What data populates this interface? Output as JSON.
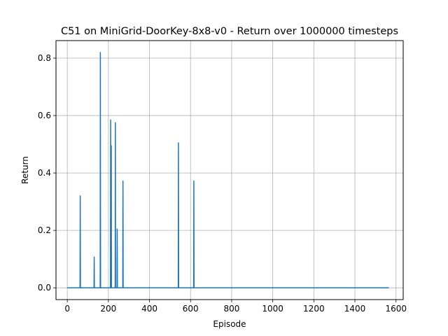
{
  "chart_data": {
    "type": "line",
    "title": "C51 on MiniGrid-DoorKey-8x8-v0 - Return over 1000000 timesteps",
    "xlabel": "Episode",
    "ylabel": "Return",
    "xlim": [
      -55,
      1635
    ],
    "ylim": [
      -0.041,
      0.861
    ],
    "xticks": [
      0,
      200,
      400,
      600,
      800,
      1000,
      1200,
      1400,
      1600
    ],
    "yticks": [
      0.0,
      0.2,
      0.4,
      0.6,
      0.8
    ],
    "xtick_labels": [
      "0",
      "200",
      "400",
      "600",
      "800",
      "1000",
      "1200",
      "1400",
      "1600"
    ],
    "ytick_labels": [
      "0.0",
      "0.2",
      "0.4",
      "0.6",
      "0.8"
    ],
    "grid": true,
    "line_color": "#1f77b4",
    "series": [
      {
        "x": [
          0,
          62,
          63,
          64,
          130,
          131,
          132,
          160,
          161,
          162,
          210,
          211,
          212,
          213,
          214,
          215,
          233,
          234,
          235,
          242,
          243,
          244,
          270,
          271,
          272,
          540,
          541,
          542,
          615,
          616,
          617,
          1565
        ],
        "y": [
          0,
          0,
          0.32,
          0,
          0,
          0.107,
          0,
          0,
          0.82,
          0,
          0,
          0.585,
          0,
          0,
          0.495,
          0,
          0,
          0.575,
          0,
          0,
          0.205,
          0,
          0,
          0.372,
          0,
          0,
          0.505,
          0,
          0,
          0.372,
          0,
          0
        ]
      }
    ]
  }
}
